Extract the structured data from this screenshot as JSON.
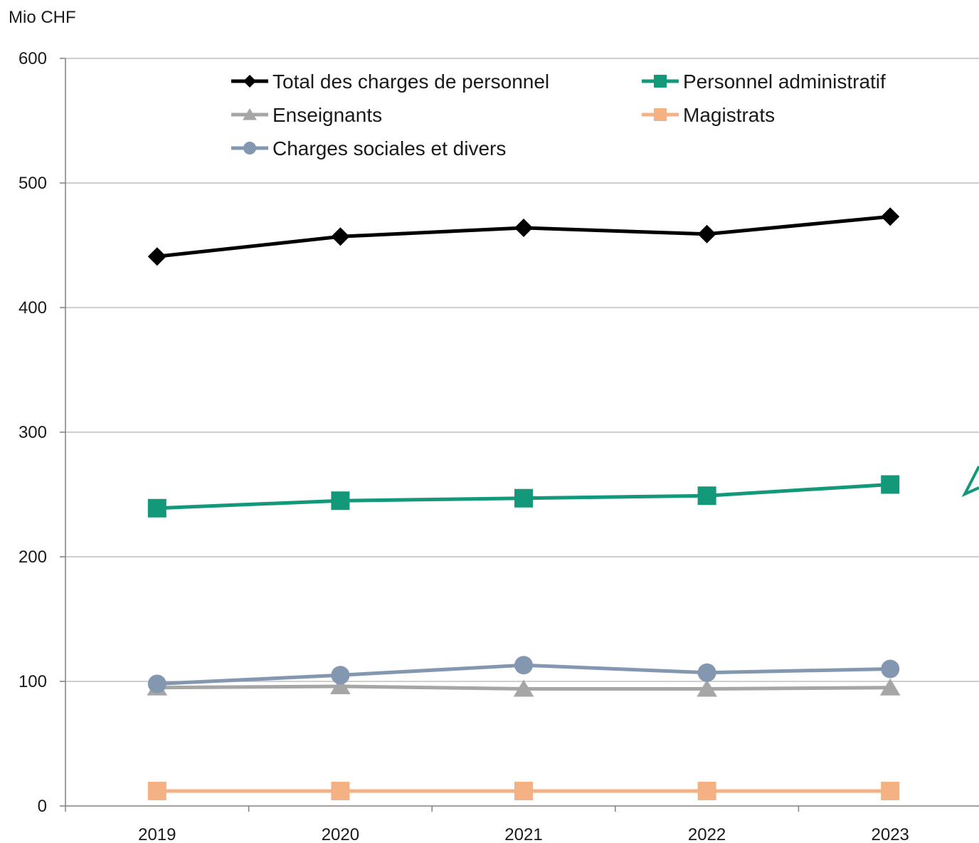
{
  "chart_data": {
    "type": "line",
    "title": "",
    "xlabel": "",
    "ylabel": "Mio CHF",
    "categories": [
      "2019",
      "2020",
      "2021",
      "2022",
      "2023"
    ],
    "ylim": [
      0,
      600
    ],
    "yticks": [
      0,
      100,
      200,
      300,
      400,
      500,
      600
    ],
    "grid": true,
    "legend_position": "top",
    "series": [
      {
        "name": "Total des charges de personnel",
        "values": [
          441,
          457,
          464,
          459,
          473
        ],
        "color": "#000000",
        "marker": "diamond"
      },
      {
        "name": "Personnel administratif",
        "values": [
          239,
          245,
          247,
          249,
          258
        ],
        "color": "#13987a",
        "marker": "square"
      },
      {
        "name": "Enseignants",
        "values": [
          95,
          96,
          94,
          94,
          95
        ],
        "color": "#a6a6a6",
        "marker": "triangle"
      },
      {
        "name": "Magistrats",
        "values": [
          12,
          12,
          12,
          12,
          12
        ],
        "color": "#f4b183",
        "marker": "square"
      },
      {
        "name": "Charges sociales et divers",
        "values": [
          98,
          105,
          113,
          107,
          110
        ],
        "color": "#8497b0",
        "marker": "circle"
      }
    ]
  }
}
